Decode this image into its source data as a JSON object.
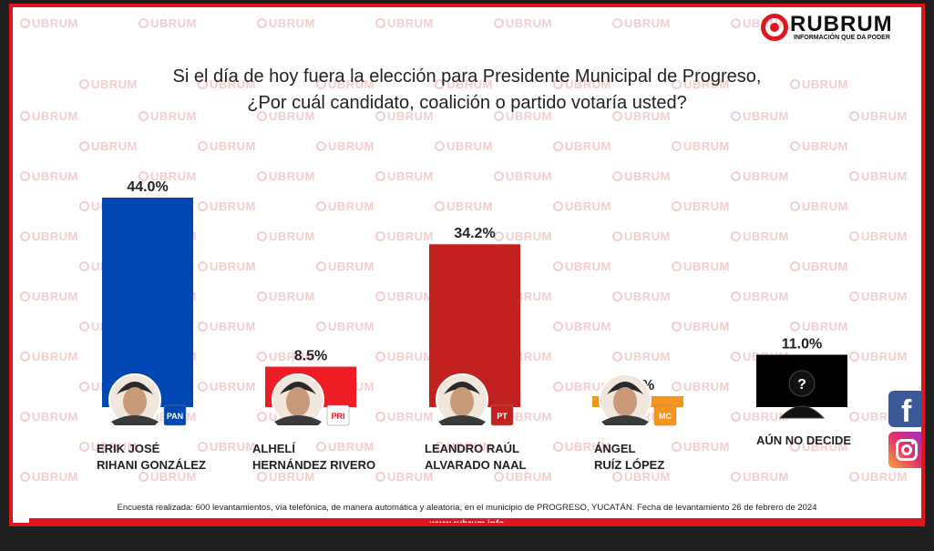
{
  "brand": {
    "name": "RUBRUM",
    "tagline": "INFORMACIÓN QUE DA PODER",
    "watermark": "RUBRUM",
    "red": "#e0161e"
  },
  "title": {
    "line1": "Si el día de hoy fuera la elección para Presidente Municipal de Progreso,",
    "line2": "¿Por cuál candidato, coalición o partido votaría usted?"
  },
  "chart_data": {
    "type": "bar",
    "title": "Si el día de hoy fuera la elección para Presidente Municipal de Progreso, ¿Por cuál candidato, coalición o partido votaría usted?",
    "categories": [
      "ERIK JOSÉ RIHANI GONZÁLEZ",
      "ALHELÍ HERNÁNDEZ RIVERO",
      "LEANDRO RAÚL ALVARADO NAAL",
      "ÁNGEL RUÍZ LÓPEZ",
      "AÚN NO DECIDE"
    ],
    "values": [
      44.0,
      8.5,
      34.2,
      2.3,
      11.0
    ],
    "value_labels": [
      "44.0%",
      "8.5%",
      "34.2%",
      "2.3%",
      "11.0%"
    ],
    "colors": [
      "#0047b3",
      "#ee1c25",
      "#c3211f",
      "#f7941d",
      "#000000"
    ],
    "party_badges": [
      "PAN",
      "PRI",
      "PT",
      "MC",
      "?"
    ],
    "ylim": [
      0,
      44.0
    ],
    "grid": false,
    "legend": "none"
  },
  "candidates": [
    {
      "line1": "ERIK JOSÉ",
      "line2": "RIHANI GONZÁLEZ"
    },
    {
      "line1": "ALHELÍ",
      "line2": "HERNÁNDEZ RIVERO"
    },
    {
      "line1": "LEANDRO RAÚL",
      "line2": "ALVARADO NAAL"
    },
    {
      "line1": "ÁNGEL",
      "line2": "RUÍZ LÓPEZ"
    },
    {
      "line1": "AÚN NO DECIDE",
      "line2": ""
    }
  ],
  "footer": {
    "note": "Encuesta realizada: 600 levantamientos, vía telefónica, de manera automática y aleatoria, en el municipio de PROGRESO, YUCATÁN. Fecha de levantamiento 26 de febrero de 2024",
    "url": "www.rubrum.info"
  },
  "social": {
    "facebook_icon": "facebook-icon",
    "instagram_icon": "instagram-icon",
    "facebook_color": "#3b5998"
  }
}
